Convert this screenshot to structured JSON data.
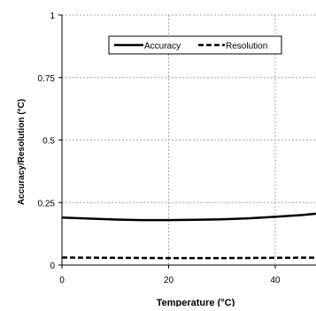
{
  "chart_data": {
    "type": "line",
    "title": "",
    "xlabel": "Temperature (°C)",
    "ylabel": "Accuracy/Resolution (°C)",
    "xlim": [
      0,
      50
    ],
    "ylim": [
      0,
      1
    ],
    "x_ticks": [
      "0",
      "20",
      "40"
    ],
    "y_ticks": [
      "0",
      "0.25",
      "0.5",
      "0.75",
      "1"
    ],
    "grid": true,
    "legend_position": "top",
    "series": [
      {
        "name": "Accuracy",
        "style": "solid",
        "color": "#000000",
        "x": [
          0,
          5,
          10,
          15,
          20,
          25,
          30,
          35,
          40,
          45,
          50
        ],
        "y": [
          0.19,
          0.186,
          0.182,
          0.18,
          0.18,
          0.181,
          0.183,
          0.187,
          0.193,
          0.2,
          0.21
        ]
      },
      {
        "name": "Resolution",
        "style": "dashed",
        "color": "#000000",
        "x": [
          0,
          10,
          20,
          30,
          40,
          50
        ],
        "y": [
          0.03,
          0.029,
          0.028,
          0.028,
          0.029,
          0.03
        ]
      }
    ]
  }
}
